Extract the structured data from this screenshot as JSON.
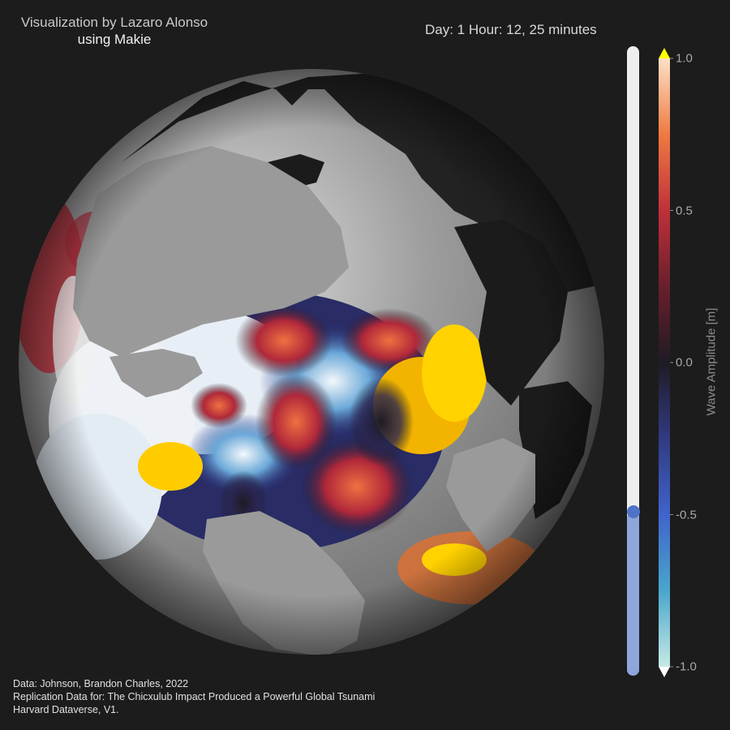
{
  "credit": {
    "line1": "Visualization by Lazaro Alonso",
    "line2": "using Makie"
  },
  "time_label": "Day: 1 Hour: 12, 25 minutes",
  "source": {
    "line1": "Data: Johnson, Brandon Charles, 2022",
    "line2": "Replication Data for: The Chicxulub Impact Produced a Powerful Global Tsunami",
    "line3": "Harvard Dataverse, V1."
  },
  "time_slider": {
    "value": 0.26
  },
  "colors": {
    "background": "#1c1c1c",
    "land": "#1b1b1b",
    "globe_ocean_neutral": "#9a9a9a",
    "wave_positive_high": "#ffd200",
    "wave_negative_high": "#e6eef6",
    "slider_track": "#eeeeee",
    "slider_fill": "#8fa6dc",
    "slider_knob": "#4f73c8"
  },
  "chart_data": {
    "type": "heatmap",
    "title": "",
    "colorbar": {
      "label": "Wave Amplitude [m]",
      "range": [
        -1.0,
        1.0
      ],
      "ticks": [
        1.0,
        0.5,
        0.0,
        -0.5,
        -1.0
      ],
      "tick_labels": [
        "1.0",
        "0.5",
        "0.0",
        "-0.5",
        "-1.0"
      ],
      "highclip_color": "#ffff00",
      "lowclip_color": "#ffffff",
      "stops": [
        {
          "value": -1.0,
          "color": "#c6eae6"
        },
        {
          "value": -0.75,
          "color": "#4aa6cc"
        },
        {
          "value": -0.5,
          "color": "#3f64cc"
        },
        {
          "value": -0.25,
          "color": "#323a82"
        },
        {
          "value": 0.0,
          "color": "#1e1b24"
        },
        {
          "value": 0.25,
          "color": "#6a1f2c"
        },
        {
          "value": 0.5,
          "color": "#c0303a"
        },
        {
          "value": 0.75,
          "color": "#ef7a42"
        },
        {
          "value": 1.0,
          "color": "#fde0c6"
        }
      ]
    }
  }
}
